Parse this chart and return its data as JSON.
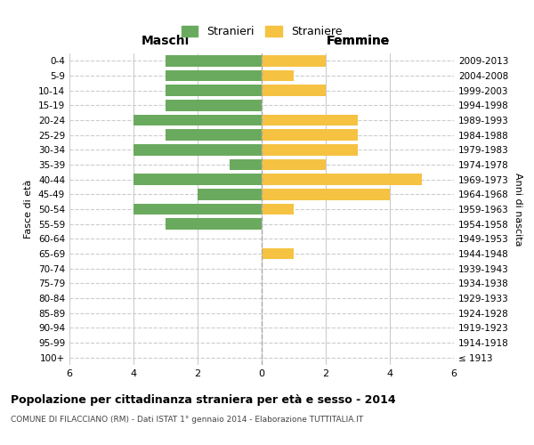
{
  "age_groups": [
    "100+",
    "95-99",
    "90-94",
    "85-89",
    "80-84",
    "75-79",
    "70-74",
    "65-69",
    "60-64",
    "55-59",
    "50-54",
    "45-49",
    "40-44",
    "35-39",
    "30-34",
    "25-29",
    "20-24",
    "15-19",
    "10-14",
    "5-9",
    "0-4"
  ],
  "birth_years": [
    "≤ 1913",
    "1914-1918",
    "1919-1923",
    "1924-1928",
    "1929-1933",
    "1934-1938",
    "1939-1943",
    "1944-1948",
    "1949-1953",
    "1954-1958",
    "1959-1963",
    "1964-1968",
    "1969-1973",
    "1974-1978",
    "1979-1983",
    "1984-1988",
    "1989-1993",
    "1994-1998",
    "1999-2003",
    "2004-2008",
    "2009-2013"
  ],
  "maschi": [
    0,
    0,
    0,
    0,
    0,
    0,
    0,
    0,
    0,
    3,
    4,
    2,
    4,
    1,
    4,
    3,
    4,
    3,
    3,
    3,
    3
  ],
  "femmine": [
    0,
    0,
    0,
    0,
    0,
    0,
    0,
    1,
    0,
    0,
    1,
    4,
    5,
    2,
    3,
    3,
    3,
    0,
    2,
    1,
    2
  ],
  "maschi_color": "#6aaa5e",
  "femmine_color": "#f5c242",
  "title": "Popolazione per cittadinanza straniera per età e sesso - 2014",
  "subtitle": "COMUNE DI FILACCIANO (RM) - Dati ISTAT 1° gennaio 2014 - Elaborazione TUTTITALIA.IT",
  "legend_maschi": "Stranieri",
  "legend_femmine": "Straniere",
  "label_maschi": "Maschi",
  "label_femmine": "Femmine",
  "ylabel_left": "Fasce di età",
  "ylabel_right": "Anni di nascita",
  "xlim": 6,
  "background_color": "#ffffff",
  "grid_color": "#cccccc",
  "bar_height": 0.75
}
